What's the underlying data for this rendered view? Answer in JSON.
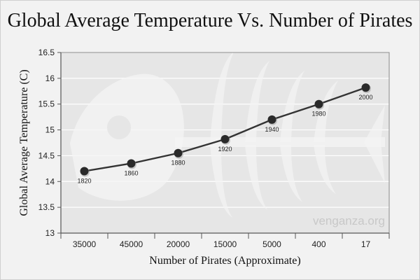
{
  "chart_data": {
    "type": "line",
    "title": "Global Average Temperature Vs. Number of Pirates",
    "xlabel": "Number of Pirates (Approximate)",
    "ylabel": "Global Average Temperature (C)",
    "categories": [
      "35000",
      "45000",
      "20000",
      "15000",
      "5000",
      "400",
      "17"
    ],
    "series": [
      {
        "values": [
          14.2,
          14.35,
          14.55,
          14.82,
          15.2,
          15.5,
          15.82
        ],
        "point_labels": [
          "1820",
          "1860",
          "1880",
          "1920",
          "1940",
          "1980",
          "2000"
        ]
      }
    ],
    "ylim": [
      13,
      16.5
    ],
    "yticks": [
      "13",
      "13.5",
      "14",
      "14.5",
      "15",
      "15.5",
      "16",
      "16.5"
    ],
    "grid": true,
    "legend": "none",
    "watermark": "venganza.org",
    "colors": {
      "line": "#333333",
      "marker": "#2a2a2a",
      "plot_background": "#e6e6e6",
      "grid": "#ffffff",
      "watermark_shape": "#f4f4f4"
    }
  }
}
